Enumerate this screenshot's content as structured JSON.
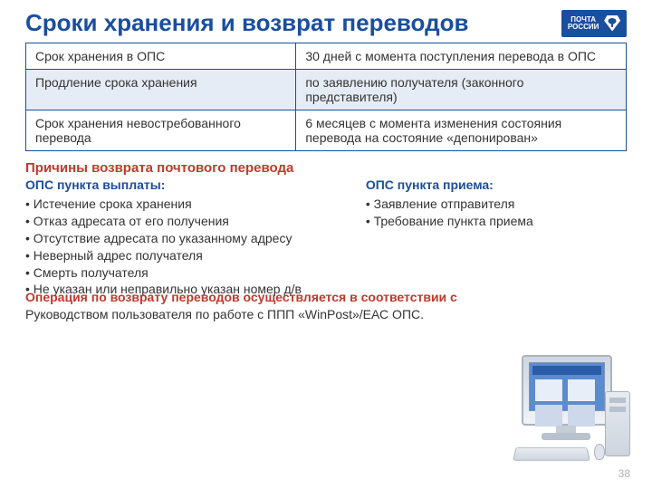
{
  "title": "Сроки хранения и возврат переводов",
  "logo": {
    "line1": "ПОЧТА",
    "line2": "РОССИИ"
  },
  "table": {
    "rows": [
      {
        "label": "Срок хранения в ОПС",
        "value": "30 дней с момента поступления перевода в ОПС",
        "shaded": false
      },
      {
        "label": "Продление срока хранения",
        "value": "по заявлению получателя (законного представителя)",
        "shaded": true
      },
      {
        "label": "Срок хранения невостребованного перевода",
        "value": "6 месяцев с момента изменения состояния перевода на состояние «депонирован»",
        "shaded": false
      }
    ]
  },
  "reasons_heading": "Причины возврата почтового перевода",
  "left": {
    "heading": "ОПС пункта выплаты:",
    "items": [
      "Истечение срока хранения",
      "Отказ адресата от его получения",
      "Отсутствие адресата по указанному адресу",
      "Неверный адрес получателя",
      "Смерть получателя",
      "Не указан или неправильно указан номер д/в"
    ]
  },
  "right": {
    "heading": "ОПС пункта приема:",
    "items": [
      "Заявление отправителя",
      "Требование пункта приема"
    ]
  },
  "bottom": {
    "red": "Операция по возврату переводов осуществляется в соответствии с ",
    "rest": "Руководством пользователя по работе с ППП «WinPost»/ЕАС ОПС."
  },
  "page_number": "38"
}
